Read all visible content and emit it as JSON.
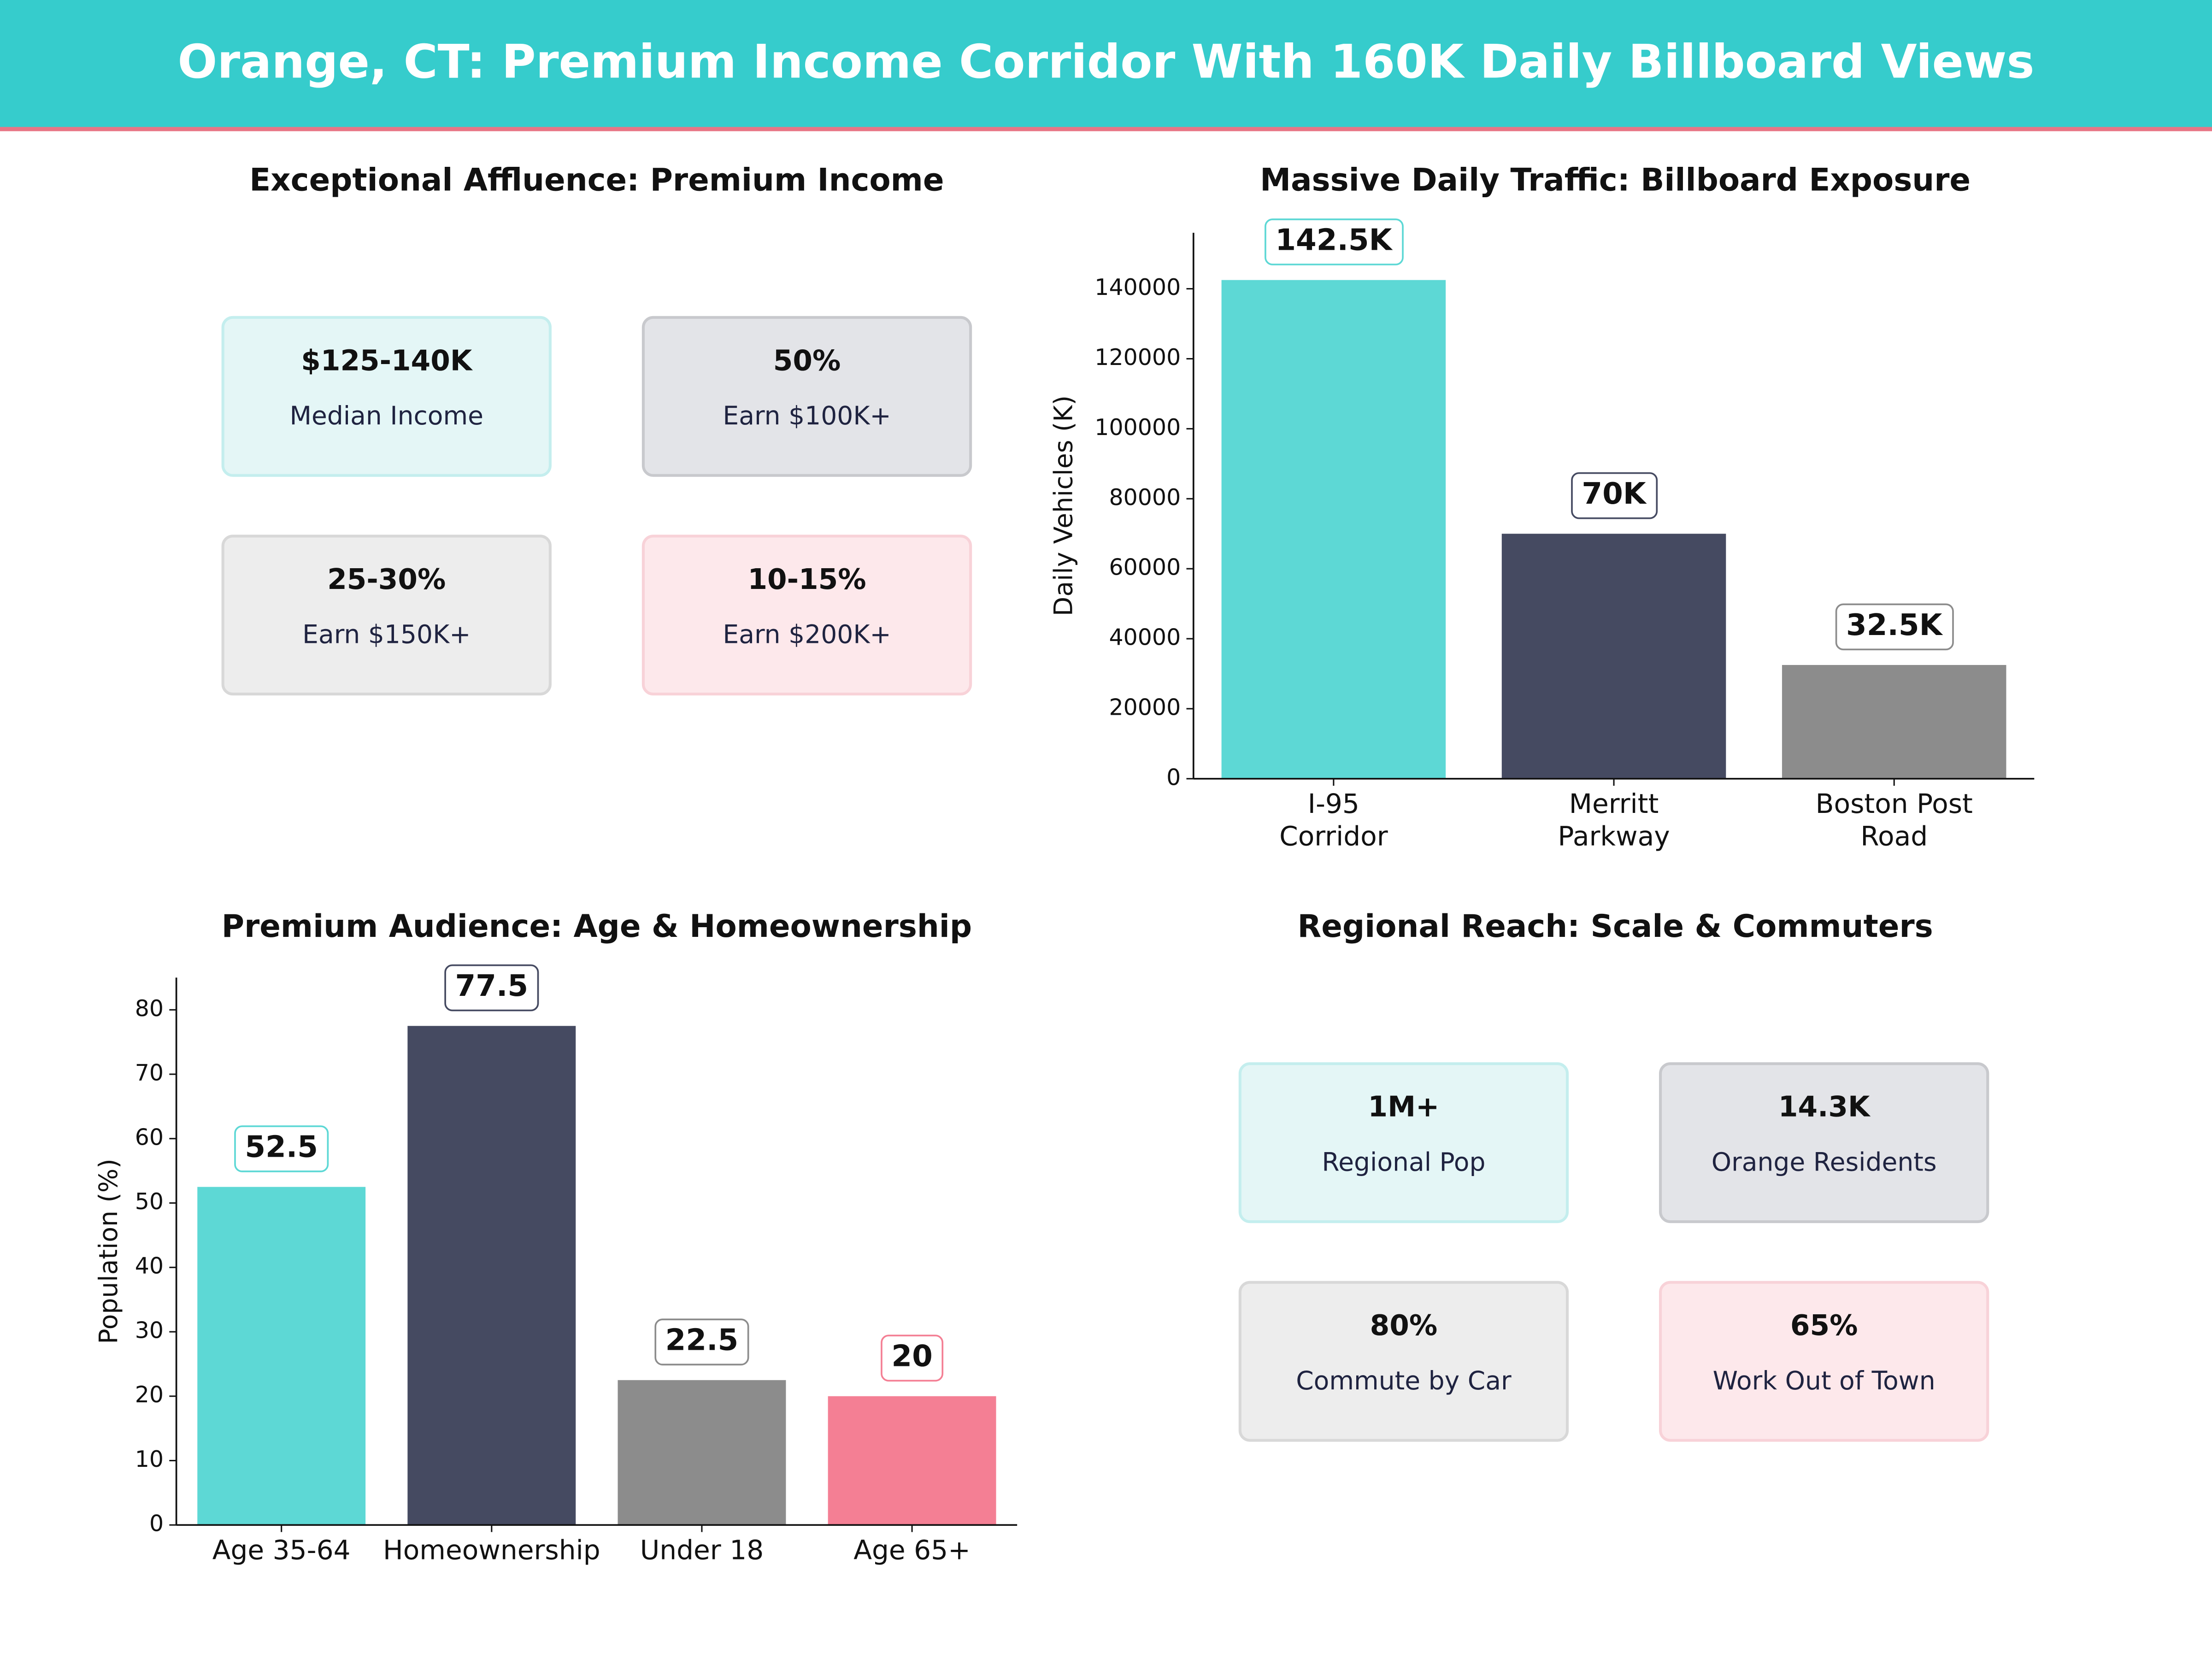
{
  "title": "Orange, CT: Premium Income Corridor With 160K Daily Billboard Views",
  "income_panel": {
    "title": "Exceptional Affluence: Premium Income",
    "cards": [
      {
        "value": "$125-140K",
        "label": "Median Income",
        "color": "#36c5c5"
      },
      {
        "value": "50%",
        "label": "Earn $100K+",
        "color": "#1f2340"
      },
      {
        "value": "25-30%",
        "label": "Earn $150K+",
        "color": "#6e6e6e"
      },
      {
        "value": "10-15%",
        "label": "Earn $200K+",
        "color": "#e8607a"
      }
    ]
  },
  "chart_data": [
    {
      "type": "bar",
      "title": "Massive Daily Traffic: Billboard Exposure",
      "categories": [
        "I-95\nCorridor",
        "Merritt\nParkway",
        "Boston Post\nRoad"
      ],
      "values": [
        142500,
        70000,
        32500
      ],
      "value_labels": [
        "142.5K",
        "70K",
        "32.5K"
      ],
      "colors": [
        "#5dd8d5",
        "#454a61",
        "#8c8c8c"
      ],
      "y_label": "Daily Vehicles (K)",
      "ylim": [
        0,
        156000
      ],
      "yticks": [
        0,
        20000,
        40000,
        60000,
        80000,
        100000,
        120000,
        140000
      ],
      "grid": false
    },
    {
      "type": "bar",
      "title": "Premium Audience: Age & Homeownership",
      "categories": [
        "Age 35-64",
        "Homeownership",
        "Under 18",
        "Age 65+"
      ],
      "values": [
        52.5,
        77.5,
        22.5,
        20
      ],
      "colors": [
        "#5dd8d5",
        "#454a61",
        "#8c8c8c",
        "#f47f94"
      ],
      "y_label": "Population (%)",
      "ylim": [
        0,
        85
      ],
      "yticks": [
        0,
        10,
        20,
        30,
        40,
        50,
        60,
        70,
        80
      ],
      "grid": false
    }
  ],
  "reach_panel": {
    "title": "Regional Reach: Scale & Commuters",
    "cards": [
      {
        "value": "1M+",
        "label": "Regional Pop",
        "color": "#36c5c5"
      },
      {
        "value": "14.3K",
        "label": "Orange Residents",
        "color": "#1f2340"
      },
      {
        "value": "80%",
        "label": "Commute by Car",
        "color": "#6e6e6e"
      },
      {
        "value": "65%",
        "label": "Work Out of Town",
        "color": "#e8607a"
      }
    ]
  }
}
